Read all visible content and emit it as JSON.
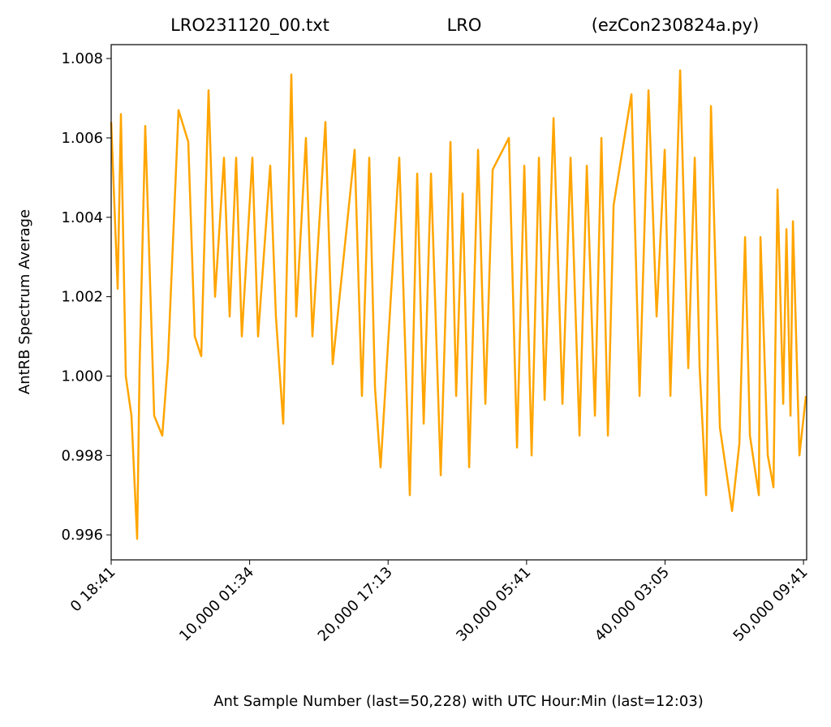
{
  "chart_data": {
    "type": "line",
    "title_left": "LRO231120_00.txt",
    "title": "LRO",
    "title_right": "(ezCon230824a.py)",
    "xlabel": "Ant Sample Number (last=50,228) with UTC Hour:Min (last=12:03)",
    "ylabel": "AntRB Spectrum Average",
    "xlim": [
      0,
      50228
    ],
    "ylim": [
      0.99537,
      1.00835
    ],
    "xticks": [
      {
        "value": 0,
        "label": "0  18:41"
      },
      {
        "value": 10000,
        "label": "10,000  01:34"
      },
      {
        "value": 20000,
        "label": "20,000  17:13"
      },
      {
        "value": 30000,
        "label": "30,000  05:41"
      },
      {
        "value": 40000,
        "label": "40,000  03:05"
      },
      {
        "value": 50000,
        "label": "50,000  09:41"
      }
    ],
    "yticks": [
      {
        "value": 0.996,
        "label": "0.996"
      },
      {
        "value": 0.998,
        "label": "0.998"
      },
      {
        "value": 1.0,
        "label": "1.000"
      },
      {
        "value": 1.002,
        "label": "1.002"
      },
      {
        "value": 1.004,
        "label": "1.004"
      },
      {
        "value": 1.006,
        "label": "1.006"
      },
      {
        "value": 1.008,
        "label": "1.008"
      }
    ],
    "grid": false,
    "series": [
      {
        "name": "AntRB",
        "color": "#ffa500",
        "x": [
          0,
          469,
          703,
          1055,
          1465,
          1876,
          2052,
          2462,
          3107,
          3693,
          4103,
          4865,
          5569,
          6038,
          6506,
          7034,
          7503,
          8148,
          8558,
          9027,
          9437,
          10199,
          10610,
          11489,
          11899,
          12427,
          13013,
          13365,
          14068,
          14537,
          15475,
          16003,
          17585,
          18113,
          18640,
          19051,
          19461,
          20809,
          21571,
          22099,
          22568,
          23095,
          23799,
          24502,
          24912,
          25381,
          25850,
          26495,
          27023,
          27550,
          28723,
          29309,
          29836,
          30364,
          30891,
          31302,
          31947,
          32591,
          33177,
          33822,
          34350,
          34936,
          35405,
          35874,
          36284,
          37574,
          38160,
          38805,
          39391,
          39977,
          40387,
          41091,
          41677,
          42146,
          42497,
          42966,
          43318,
          43963,
          44842,
          45370,
          45780,
          46132,
          46777,
          46894,
          47422,
          47833,
          48126,
          48536,
          48770,
          49063,
          49239,
          49708,
          50176
        ],
        "values": [
          1.0064,
          1.0022,
          1.0066,
          1.0,
          0.999,
          0.9959,
          1.0002,
          1.0063,
          0.999,
          0.9985,
          1.0004,
          1.0067,
          1.0059,
          1.001,
          1.0005,
          1.0072,
          1.002,
          1.0055,
          1.0015,
          1.0055,
          1.001,
          1.0055,
          1.001,
          1.0053,
          1.0015,
          0.9988,
          1.0076,
          1.0015,
          1.006,
          1.001,
          1.0064,
          1.0003,
          1.0057,
          0.9995,
          1.0055,
          0.9997,
          0.9977,
          1.0055,
          0.997,
          1.0051,
          0.9988,
          1.0051,
          0.9975,
          1.0059,
          0.9995,
          1.0046,
          0.9977,
          1.0057,
          0.9993,
          1.0052,
          1.006,
          0.9982,
          1.0053,
          0.998,
          1.0055,
          0.9994,
          1.0065,
          0.9993,
          1.0055,
          0.9985,
          1.0053,
          0.999,
          1.006,
          0.9985,
          1.0043,
          1.0071,
          0.9995,
          1.0072,
          1.0015,
          1.0057,
          0.9995,
          1.0077,
          1.0002,
          1.0055,
          1.0002,
          0.997,
          1.0068,
          0.9987,
          0.9966,
          0.9983,
          1.0035,
          0.9985,
          0.997,
          1.0035,
          0.998,
          0.9972,
          1.0047,
          0.9993,
          1.0037,
          0.999,
          1.0039,
          0.998,
          0.9995
        ]
      }
    ]
  }
}
